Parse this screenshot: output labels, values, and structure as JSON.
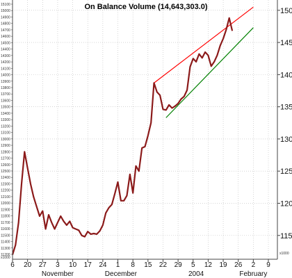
{
  "chart_data": {
    "type": "line",
    "title": "On Balance Volume (14,643,303.0)",
    "left_axis_ticks": [
      "15100",
      "15000",
      "14900",
      "14800",
      "14700",
      "14600",
      "14500",
      "14400",
      "14300",
      "14200",
      "14100",
      "14000",
      "13900",
      "13800",
      "13700",
      "13600",
      "13500",
      "13400",
      "13300",
      "13200",
      "13100",
      "13000",
      "12900",
      "12800",
      "12700",
      "12600",
      "12500",
      "12400",
      "12300",
      "12200",
      "12100",
      "12000",
      "11900",
      "11800",
      "11700",
      "11600",
      "11500",
      "11400",
      "11300",
      "11200"
    ],
    "left_axis_unit": "x1000",
    "right_axis": {
      "ticks": [
        150,
        145,
        140,
        135,
        130,
        125,
        120,
        115
      ],
      "unit": "x1000",
      "range": [
        111.3,
        151.6
      ]
    },
    "x_tick_labels": [
      {
        "label": "6",
        "i": 0
      },
      {
        "label": "20",
        "i": 5
      },
      {
        "label": "27",
        "i": 10
      },
      {
        "label": "3",
        "i": 15
      },
      {
        "label": "10",
        "i": 20
      },
      {
        "label": "17",
        "i": 25
      },
      {
        "label": "24",
        "i": 30
      },
      {
        "label": "1",
        "i": 35
      },
      {
        "label": "8",
        "i": 40
      },
      {
        "label": "15",
        "i": 45
      },
      {
        "label": "22",
        "i": 50
      },
      {
        "label": "29",
        "i": 55
      },
      {
        "label": "5",
        "i": 60
      },
      {
        "label": "12",
        "i": 65
      },
      {
        "label": "19",
        "i": 70
      },
      {
        "label": "26",
        "i": 75
      },
      {
        "label": "2",
        "i": 80
      },
      {
        "label": "9",
        "i": 85
      }
    ],
    "month_labels": [
      {
        "label": "November",
        "i": 15
      },
      {
        "label": "December",
        "i": 36
      },
      {
        "label": "2004",
        "i": 61
      },
      {
        "label": "February",
        "i": 80
      }
    ],
    "x_range": [
      0,
      88
    ],
    "series": [
      {
        "color": "#8b1a1a",
        "values": [
          112,
          113.5,
          117,
          123,
          128,
          125.5,
          123,
          121,
          119.5,
          118,
          118.8,
          116,
          118.2,
          117,
          116,
          117,
          118,
          117.2,
          116.6,
          117.2,
          116.2,
          116,
          115.8,
          115,
          114.8,
          115.6,
          115.2,
          115.3,
          115.2,
          115.7,
          116.6,
          118.5,
          119.3,
          119.8,
          121.5,
          123.3,
          120.4,
          120.4,
          121.2,
          124.5,
          121.6,
          125.8,
          125,
          128.6,
          128.8,
          130.5,
          132.5,
          138.7,
          137.3,
          136.8,
          134.6,
          134.5,
          135.3,
          134.8,
          135.1,
          135.5,
          136.2,
          136.6,
          137.6,
          141.2,
          142.5,
          142,
          143.2,
          142.6,
          143.5,
          143,
          141.3,
          142,
          143,
          144.5,
          145.6,
          147,
          148.8,
          146.8
        ]
      }
    ],
    "trendlines": [
      {
        "color": "#ff0000",
        "points": [
          [
            47,
            138.7
          ],
          [
            80,
            150.5
          ]
        ]
      },
      {
        "color": "#008000",
        "points": [
          [
            51,
            133.3
          ],
          [
            80,
            147.3
          ]
        ]
      }
    ],
    "grid": true
  }
}
